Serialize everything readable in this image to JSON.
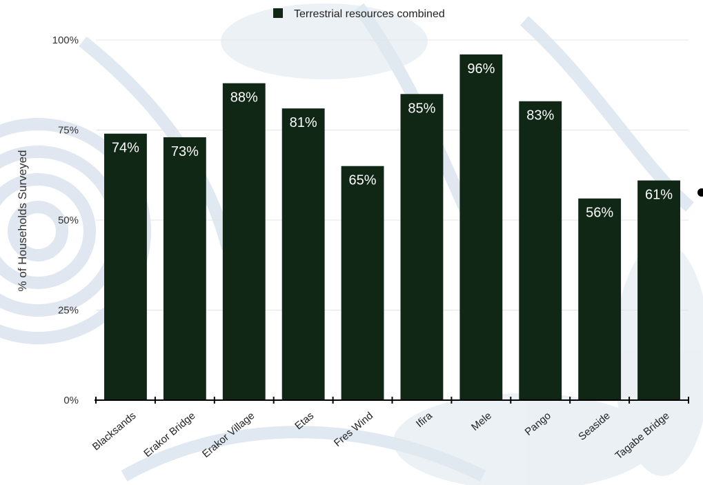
{
  "chart_data": {
    "type": "bar",
    "categories": [
      "Blacksands",
      "Erakor Bridge",
      "Erakor Village",
      "Etas",
      "Fres Wind",
      "Ifira",
      "Mele",
      "Pango",
      "Seaside",
      "Tagabe Bridge"
    ],
    "series": [
      {
        "name": "Terrestrial resources combined",
        "values": [
          74,
          73,
          88,
          81,
          65,
          85,
          96,
          83,
          56,
          61
        ],
        "labels": [
          "74%",
          "73%",
          "88%",
          "81%",
          "65%",
          "85%",
          "96%",
          "83%",
          "56%",
          "61%"
        ],
        "color": "#102716"
      }
    ],
    "ylabel": "% of Households Surveyed",
    "ylim": [
      0,
      100
    ],
    "yticks": [
      0,
      25,
      50,
      75,
      100
    ],
    "ytick_labels": [
      "0%",
      "25%",
      "50%",
      "75%",
      "100%"
    ],
    "grid": true,
    "legend_position": "top"
  }
}
